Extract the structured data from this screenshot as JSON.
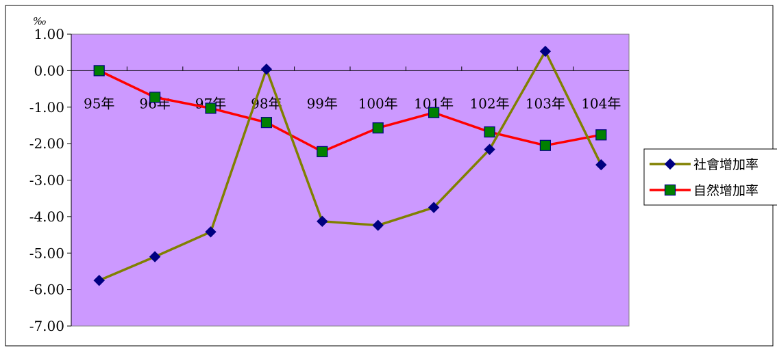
{
  "chart_data": {
    "type": "line",
    "unit_label": "‰",
    "categories": [
      "95年",
      "96年",
      "97年",
      "98年",
      "99年",
      "100年",
      "101年",
      "102年",
      "103年",
      "104年"
    ],
    "y_ticks": [
      "1.00",
      "0.00",
      "-1.00",
      "-2.00",
      "-3.00",
      "-4.00",
      "-5.00",
      "-6.00",
      "-7.00"
    ],
    "ylim": [
      -7,
      1
    ],
    "grid": false,
    "legend_position": "right",
    "plot_background": "#cc99ff",
    "series": [
      {
        "name": "社會增加率",
        "line_color": "#808000",
        "marker": "diamond",
        "marker_color": "#000080",
        "values": [
          -5.75,
          -5.1,
          -4.42,
          0.04,
          -4.13,
          -4.24,
          -3.75,
          -2.16,
          0.53,
          -2.58
        ]
      },
      {
        "name": "自然增加率",
        "line_color": "#ff0000",
        "marker": "square",
        "marker_color": "#008000",
        "values": [
          0.0,
          -0.73,
          -1.03,
          -1.42,
          -2.22,
          -1.57,
          -1.15,
          -1.68,
          -2.05,
          -1.76
        ]
      }
    ]
  }
}
